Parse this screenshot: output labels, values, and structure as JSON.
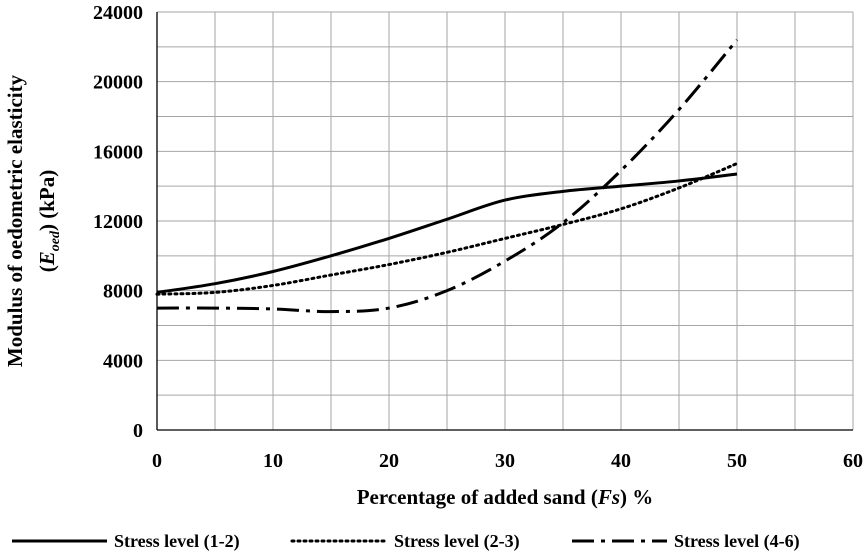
{
  "chart_data": {
    "type": "line",
    "title": "",
    "xlabel": {
      "pre": "Percentage of added sand (",
      "italic": "Fs",
      "post": ") %"
    },
    "ylabel": {
      "line1": "Modulus of oedometric elasticity",
      "line2_pre": "(",
      "line2_italic": "E",
      "line2_sub": "oed",
      "line2_post": ") (kPa)"
    },
    "xlim": [
      0,
      60
    ],
    "ylim": [
      0,
      24000
    ],
    "xticks": [
      0,
      10,
      20,
      30,
      40,
      50,
      60
    ],
    "yticks": [
      0,
      4000,
      8000,
      12000,
      16000,
      20000,
      24000
    ],
    "grid": true,
    "legend_position": "bottom",
    "series": [
      {
        "name": "Stress level (1-2)",
        "style": "solid",
        "x": [
          0,
          5,
          10,
          15,
          20,
          25,
          30,
          35,
          40,
          45,
          50
        ],
        "y": [
          7900,
          8400,
          9100,
          10000,
          11000,
          12100,
          13200,
          13700,
          14000,
          14300,
          14700
        ]
      },
      {
        "name": "Stress level (2-3)",
        "style": "dotted",
        "x": [
          0,
          5,
          10,
          15,
          20,
          25,
          30,
          35,
          40,
          45,
          50
        ],
        "y": [
          7800,
          7900,
          8300,
          8900,
          9500,
          10200,
          11000,
          11800,
          12700,
          13900,
          15300
        ]
      },
      {
        "name": "Stress level (4-6)",
        "style": "dashdot",
        "x": [
          0,
          5,
          10,
          15,
          20,
          25,
          30,
          35,
          40,
          45,
          50
        ],
        "y": [
          7000,
          7000,
          6950,
          6800,
          7000,
          8000,
          9700,
          11900,
          14900,
          18400,
          22400
        ]
      }
    ]
  }
}
